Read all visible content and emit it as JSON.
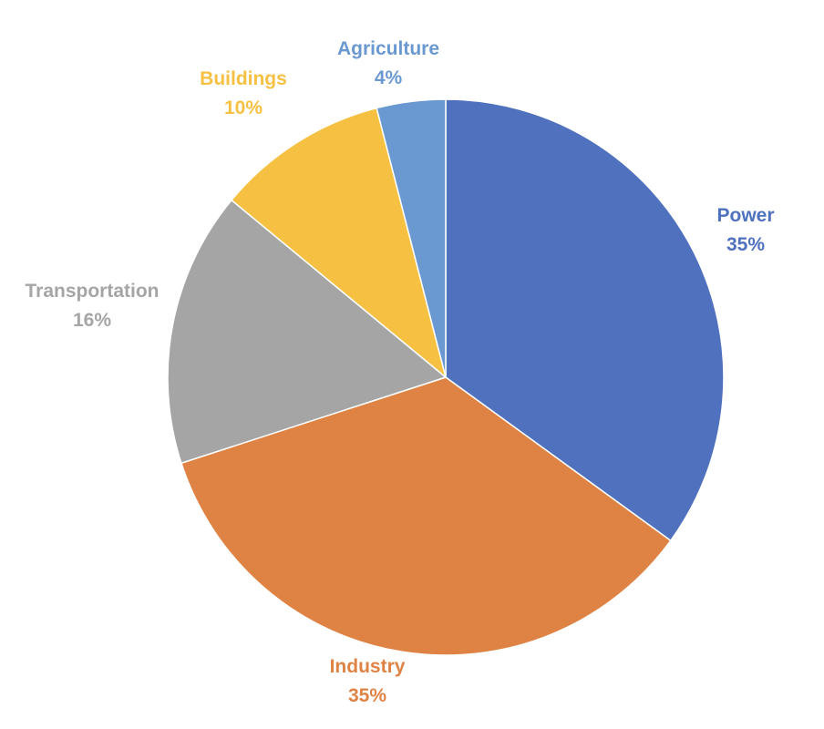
{
  "chart_data": {
    "type": "pie",
    "title": "",
    "slices": [
      {
        "name": "Power",
        "value": 35,
        "label": "35%",
        "color": "#4F71BE"
      },
      {
        "name": "Industry",
        "value": 35,
        "label": "35%",
        "color": "#DF8344"
      },
      {
        "name": "Transportation",
        "value": 16,
        "label": "16%",
        "color": "#A5A5A5"
      },
      {
        "name": "Buildings",
        "value": 10,
        "label": "10%",
        "color": "#F6C143"
      },
      {
        "name": "Agriculture",
        "value": 4,
        "label": "4%",
        "color": "#6A98D0"
      }
    ],
    "start_angle_deg": 0,
    "direction": "clockwise",
    "legend": "none",
    "data_labels": "outside"
  }
}
